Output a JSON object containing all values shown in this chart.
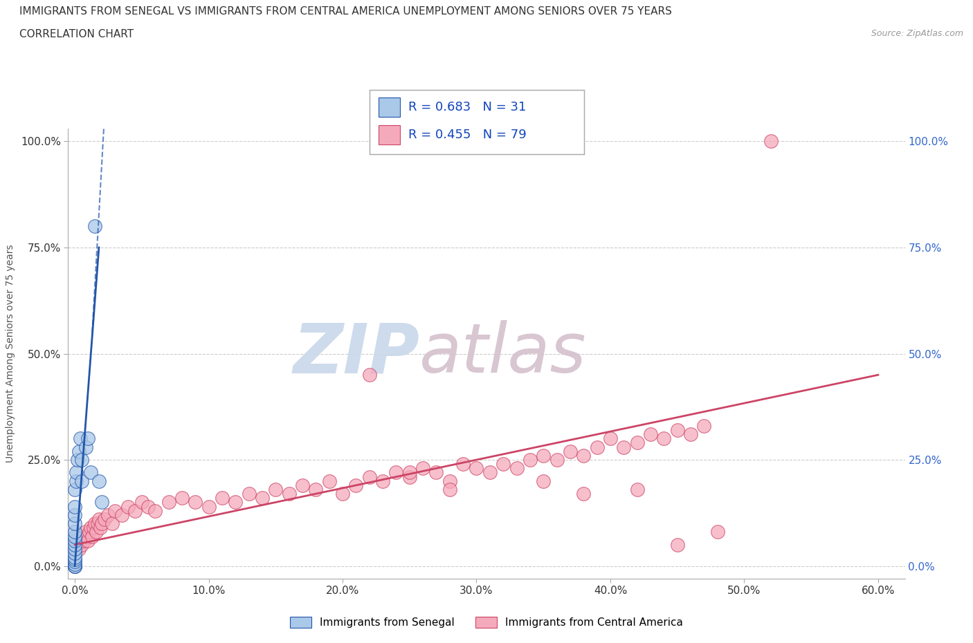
{
  "title_line1": "IMMIGRANTS FROM SENEGAL VS IMMIGRANTS FROM CENTRAL AMERICA UNEMPLOYMENT AMONG SENIORS OVER 75 YEARS",
  "title_line2": "CORRELATION CHART",
  "source_text": "Source: ZipAtlas.com",
  "xlabel_vals": [
    0,
    10,
    20,
    30,
    40,
    50,
    60
  ],
  "ylabel_vals": [
    0,
    25,
    50,
    75,
    100
  ],
  "ylabel_label": "Unemployment Among Seniors over 75 years",
  "legend_labels": [
    "Immigrants from Senegal",
    "Immigrants from Central America"
  ],
  "legend_r": [
    0.683,
    0.455
  ],
  "legend_n": [
    31,
    79
  ],
  "blue_color": "#aac8e8",
  "pink_color": "#f5aabb",
  "blue_line_color": "#2255aa",
  "pink_line_color": "#cc4466",
  "watermark_zip": "ZIP",
  "watermark_atlas": "atlas",
  "watermark_color_zip": "#c8d8e8",
  "watermark_color_atlas": "#c8b8c8",
  "grid_color": "#cccccc",
  "background_color": "#ffffff",
  "senegal_x": [
    0.0,
    0.0,
    0.0,
    0.0,
    0.0,
    0.0,
    0.0,
    0.0,
    0.0,
    0.0,
    0.0,
    0.0,
    0.0,
    0.0,
    0.0,
    0.0,
    0.0,
    0.0,
    0.1,
    0.1,
    0.2,
    0.3,
    0.4,
    0.5,
    0.5,
    0.8,
    1.0,
    1.2,
    1.5,
    1.8,
    2.0
  ],
  "senegal_y": [
    0.0,
    0.0,
    0.0,
    0.0,
    0.5,
    1.0,
    1.5,
    2.0,
    3.0,
    4.0,
    5.0,
    6.0,
    7.0,
    8.0,
    10.0,
    12.0,
    14.0,
    18.0,
    20.0,
    22.0,
    25.0,
    27.0,
    30.0,
    20.0,
    25.0,
    28.0,
    30.0,
    22.0,
    80.0,
    20.0,
    15.0
  ],
  "ca_x": [
    0.2,
    0.3,
    0.4,
    0.5,
    0.6,
    0.7,
    0.8,
    0.9,
    1.0,
    1.1,
    1.2,
    1.3,
    1.4,
    1.5,
    1.6,
    1.7,
    1.8,
    1.9,
    2.0,
    2.2,
    2.5,
    2.8,
    3.0,
    3.5,
    4.0,
    4.5,
    5.0,
    5.5,
    6.0,
    7.0,
    8.0,
    9.0,
    10.0,
    11.0,
    12.0,
    13.0,
    14.0,
    15.0,
    16.0,
    17.0,
    18.0,
    19.0,
    20.0,
    21.0,
    22.0,
    23.0,
    24.0,
    25.0,
    26.0,
    27.0,
    28.0,
    29.0,
    30.0,
    31.0,
    32.0,
    33.0,
    34.0,
    35.0,
    36.0,
    37.0,
    38.0,
    39.0,
    40.0,
    41.0,
    42.0,
    43.0,
    44.0,
    45.0,
    46.0,
    47.0,
    22.0,
    25.0,
    28.0,
    35.0,
    38.0,
    42.0,
    45.0,
    48.0,
    52.0
  ],
  "ca_y": [
    5.0,
    4.0,
    6.0,
    5.0,
    7.0,
    6.0,
    8.0,
    7.0,
    6.0,
    8.0,
    9.0,
    7.0,
    9.0,
    10.0,
    8.0,
    10.0,
    11.0,
    9.0,
    10.0,
    11.0,
    12.0,
    10.0,
    13.0,
    12.0,
    14.0,
    13.0,
    15.0,
    14.0,
    13.0,
    15.0,
    16.0,
    15.0,
    14.0,
    16.0,
    15.0,
    17.0,
    16.0,
    18.0,
    17.0,
    19.0,
    18.0,
    20.0,
    17.0,
    19.0,
    21.0,
    20.0,
    22.0,
    21.0,
    23.0,
    22.0,
    20.0,
    24.0,
    23.0,
    22.0,
    24.0,
    23.0,
    25.0,
    26.0,
    25.0,
    27.0,
    26.0,
    28.0,
    30.0,
    28.0,
    29.0,
    31.0,
    30.0,
    32.0,
    31.0,
    33.0,
    45.0,
    22.0,
    18.0,
    20.0,
    17.0,
    18.0,
    5.0,
    8.0,
    100.0
  ]
}
